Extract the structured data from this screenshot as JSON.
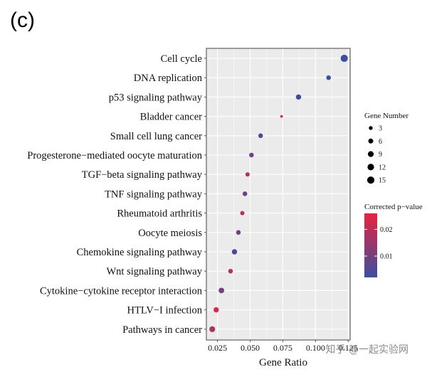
{
  "panel_label": "(c)",
  "watermark": "知乎 @一起实验网",
  "colors": {
    "low_p": "#3a4f9e",
    "high_p": "#e8233f",
    "panel_bg": "#ebebeb",
    "grid": "#ffffff"
  },
  "chart_data": {
    "type": "scatter",
    "title": "",
    "xlabel": "Gene Ratio",
    "ylabel": "",
    "xlim": [
      0.0165,
      0.1265
    ],
    "xticks": [
      0.025,
      0.05,
      0.075,
      0.1,
      0.125
    ],
    "xtick_labels": [
      "0.025",
      "0.050",
      "0.075",
      "0.100",
      "0.125"
    ],
    "grid": true,
    "categories": [
      "Cell cycle",
      "DNA replication",
      "p53 signaling pathway",
      "Bladder cancer",
      "Small cell lung cancer",
      "Progesterone−mediated oocyte maturation",
      "TGF−beta signaling pathway",
      "TNF signaling pathway",
      "Rheumatoid arthritis",
      "Oocyte meiosis",
      "Chemokine signaling pathway",
      "Wnt signaling pathway",
      "Cytokine−cytokine receptor interaction",
      "HTLV−I infection",
      "Pathways in cancer"
    ],
    "gene_ratio": [
      0.122,
      0.11,
      0.087,
      0.074,
      0.058,
      0.051,
      0.048,
      0.046,
      0.044,
      0.041,
      0.038,
      0.035,
      0.028,
      0.024,
      0.021
    ],
    "gene_number": [
      15,
      5,
      7,
      1,
      5,
      5,
      4,
      5,
      4,
      5,
      7,
      5,
      8,
      7,
      9
    ],
    "corrected_pvalue": [
      0.002,
      0.003,
      0.003,
      0.025,
      0.004,
      0.008,
      0.018,
      0.009,
      0.019,
      0.009,
      0.004,
      0.02,
      0.01,
      0.024,
      0.018
    ],
    "size_legend": {
      "title": "Gene Number",
      "values": [
        3,
        6,
        9,
        12,
        15
      ]
    },
    "color_legend": {
      "title": "Corrected p−value",
      "range": [
        0.002,
        0.026
      ],
      "ticks": [
        0.02,
        0.01
      ],
      "tick_labels": [
        "0.02",
        "0.01"
      ]
    }
  }
}
